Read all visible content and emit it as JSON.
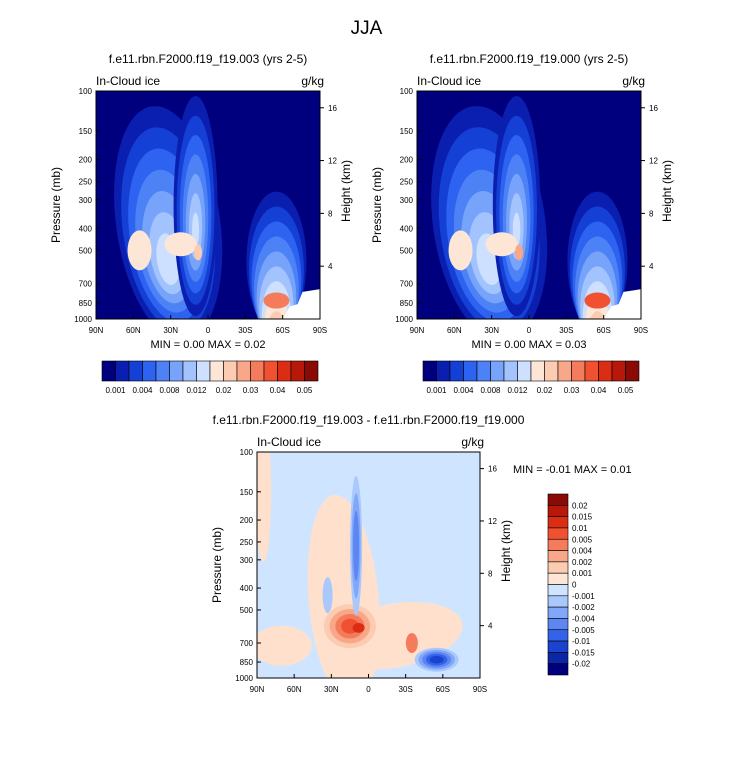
{
  "page_title": "JJA",
  "colors": {
    "background_field": "#00007f",
    "white": "#ffffff",
    "diff_background": "#cfe5ff",
    "diff_positive": "#ffe0cc"
  },
  "chart_data": [
    {
      "type": "heatmap",
      "title": "f.e11.rbn.F2000.f19_f19.003 (yrs 2-5)",
      "field_label": "In-Cloud ice",
      "units": "g/kg",
      "ylabel": "Pressure (mb)",
      "ylabel_right": "Height (km)",
      "x_ticks": [
        "90N",
        "60N",
        "30N",
        "0",
        "30S",
        "60S",
        "90S"
      ],
      "y_ticks": [
        "100",
        "150",
        "200",
        "250",
        "300",
        "400",
        "500",
        "700",
        "850",
        "1000"
      ],
      "y_values": [
        100,
        150,
        200,
        250,
        300,
        400,
        500,
        700,
        850,
        1000
      ],
      "height_ticks": [
        "16",
        "12",
        "8",
        "4"
      ],
      "height_values": [
        16,
        12,
        8,
        4
      ],
      "min_max": "MIN =   0.00   MAX =   0.02",
      "levels": [
        "0.001",
        "0.004",
        "0.008",
        "0.012",
        "0.02",
        "0.03",
        "0.04",
        "0.05"
      ]
    },
    {
      "type": "heatmap",
      "title": "f.e11.rbn.F2000.f19_f19.000 (yrs 2-5)",
      "field_label": "In-Cloud ice",
      "units": "g/kg",
      "ylabel": "Pressure (mb)",
      "ylabel_right": "Height (km)",
      "x_ticks": [
        "90N",
        "60N",
        "30N",
        "0",
        "30S",
        "60S",
        "90S"
      ],
      "y_ticks": [
        "100",
        "150",
        "200",
        "250",
        "300",
        "400",
        "500",
        "700",
        "850",
        "1000"
      ],
      "y_values": [
        100,
        150,
        200,
        250,
        300,
        400,
        500,
        700,
        850,
        1000
      ],
      "height_ticks": [
        "16",
        "12",
        "8",
        "4"
      ],
      "height_values": [
        16,
        12,
        8,
        4
      ],
      "min_max": "MIN =   0.00   MAX =   0.03",
      "levels": [
        "0.001",
        "0.004",
        "0.008",
        "0.012",
        "0.02",
        "0.03",
        "0.04",
        "0.05"
      ]
    },
    {
      "type": "heatmap",
      "title": "f.e11.rbn.F2000.f19_f19.003 - f.e11.rbn.F2000.f19_f19.000",
      "field_label": "In-Cloud ice",
      "units": "g/kg",
      "ylabel": "Pressure (mb)",
      "ylabel_right": "Height (km)",
      "x_ticks": [
        "90N",
        "60N",
        "30N",
        "0",
        "30S",
        "60S",
        "90S"
      ],
      "y_ticks": [
        "100",
        "150",
        "200",
        "250",
        "300",
        "400",
        "500",
        "700",
        "850",
        "1000"
      ],
      "y_values": [
        100,
        150,
        200,
        250,
        300,
        400,
        500,
        700,
        850,
        1000
      ],
      "height_ticks": [
        "16",
        "12",
        "8",
        "4"
      ],
      "height_values": [
        16,
        12,
        8,
        4
      ],
      "min_max": "MIN =  -0.01   MAX =   0.01",
      "levels": [
        "0.02",
        "0.015",
        "0.01",
        "0.005",
        "0.004",
        "0.002",
        "0.001",
        "0",
        "-0.001",
        "-0.002",
        "-0.004",
        "-0.005",
        "-0.01",
        "-0.015",
        "-0.02"
      ]
    }
  ],
  "palettes": {
    "absolute": [
      "#00007f",
      "#0a1fb0",
      "#1540d6",
      "#2e62f0",
      "#4d82f6",
      "#77a3fa",
      "#a2c3fd",
      "#cde0ff",
      "#fde6d6",
      "#fbcbb2",
      "#f8a888",
      "#f47c5c",
      "#ef5131",
      "#da2d13",
      "#b8180a",
      "#8a0a05"
    ],
    "difference": [
      "#8a0a05",
      "#b8180a",
      "#da2d13",
      "#ef5131",
      "#f47c5c",
      "#f8a888",
      "#fbcbb2",
      "#fde6d6",
      "#cfe5ff",
      "#a9c8fc",
      "#82a7f8",
      "#5c86f2",
      "#3463e8",
      "#1a44cf",
      "#0b26a6",
      "#00007f"
    ]
  }
}
